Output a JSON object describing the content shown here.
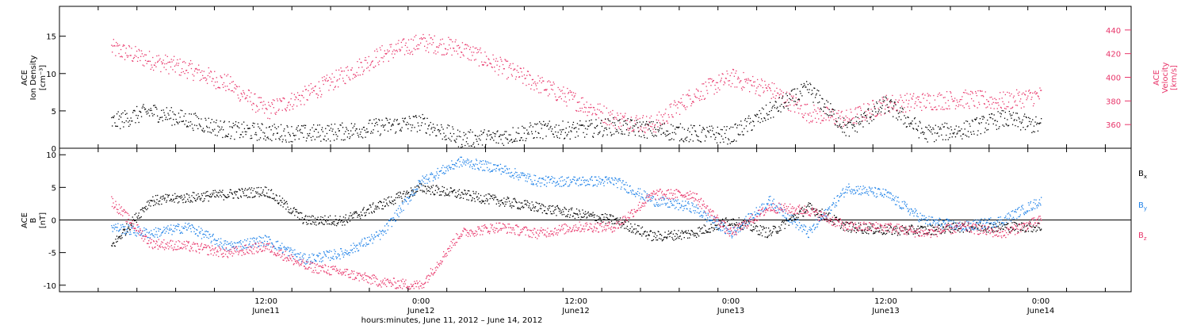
{
  "chart_data": [
    {
      "type": "scatter",
      "panel": "ion-density-velocity",
      "ylabel_left": [
        "ACE",
        "Ion Density",
        "[cm⁻³]"
      ],
      "ylabel_right": [
        "ACE",
        "Velocity",
        "[km/s]"
      ],
      "ylim_left": [
        0,
        19
      ],
      "ylim_right": [
        340,
        460
      ],
      "yticks_left": [
        "0",
        "5",
        "10",
        "15"
      ],
      "yticks_right": [
        "360",
        "380",
        "400",
        "420",
        "440"
      ],
      "colors": {
        "density": "#000000",
        "velocity": "#e8356a"
      },
      "series": [
        {
          "axis": "left",
          "hours": [
            0,
            3,
            6,
            9,
            12,
            15,
            18,
            21,
            24,
            27,
            30,
            33,
            36,
            39,
            42,
            45,
            48,
            51,
            54,
            57,
            60,
            63,
            66,
            69,
            72
          ],
          "values": [
            3.5,
            5,
            3.8,
            2.5,
            2.2,
            2,
            2.3,
            3,
            3.5,
            1.3,
            1.5,
            2.5,
            2.5,
            3,
            2.5,
            2,
            1.8,
            5,
            8,
            2.5,
            6,
            2,
            2.5,
            4,
            3
          ]
        },
        {
          "axis": "right",
          "hours": [
            0,
            3,
            6,
            9,
            12,
            15,
            18,
            21,
            24,
            27,
            30,
            33,
            36,
            39,
            42,
            45,
            48,
            51,
            54,
            57,
            60,
            63,
            66,
            69,
            72
          ],
          "values": [
            425,
            415,
            407,
            395,
            372,
            385,
            402,
            420,
            430,
            425,
            410,
            395,
            380,
            365,
            360,
            385,
            400,
            390,
            370,
            365,
            378,
            380,
            382,
            380,
            385
          ]
        }
      ]
    },
    {
      "type": "scatter",
      "panel": "magnetic-field",
      "ylabel_left": [
        "ACE",
        "B",
        "[nT]"
      ],
      "ylim": [
        -11,
        11
      ],
      "yticks": [
        "-10",
        "-5",
        "0",
        "5",
        "10"
      ],
      "zero_line": true,
      "legend_position": "right",
      "series": [
        {
          "name_main": "B",
          "name_sub": "x",
          "color": "#000000",
          "hours": [
            0,
            3,
            6,
            9,
            12,
            15,
            18,
            21,
            24,
            27,
            30,
            33,
            36,
            39,
            42,
            45,
            48,
            51,
            54,
            57,
            60,
            63,
            66,
            69,
            72
          ],
          "values": [
            -4,
            3,
            3.5,
            4,
            4.5,
            0,
            0,
            2.5,
            5,
            4,
            3,
            2,
            1,
            0,
            -2.5,
            -2,
            0,
            -2,
            2,
            -1,
            -1.5,
            -1.5,
            -1,
            -1,
            -1
          ]
        },
        {
          "name_main": "B",
          "name_sub": "y",
          "color": "#1f82e8",
          "hours": [
            0,
            3,
            6,
            9,
            12,
            15,
            18,
            21,
            24,
            27,
            30,
            33,
            36,
            39,
            42,
            45,
            48,
            51,
            54,
            57,
            60,
            63,
            66,
            69,
            72
          ],
          "values": [
            -1,
            -2,
            -1,
            -4,
            -3,
            -6,
            -5,
            -2,
            6,
            9,
            8,
            6,
            6,
            6,
            3,
            2,
            -2,
            3,
            -2,
            5,
            4,
            0,
            -1,
            0,
            3
          ]
        },
        {
          "name_main": "B",
          "name_sub": "z",
          "color": "#e8356a",
          "hours": [
            0,
            3,
            6,
            9,
            12,
            15,
            18,
            21,
            24,
            27,
            30,
            33,
            36,
            39,
            42,
            45,
            48,
            51,
            54,
            57,
            60,
            63,
            66,
            69,
            72
          ],
          "values": [
            3,
            -3.5,
            -4,
            -5,
            -4,
            -7,
            -8,
            -9.5,
            -10,
            -2,
            -1,
            -2,
            -1,
            -1,
            4,
            4,
            -2,
            2,
            1.5,
            -1,
            -1,
            -2,
            -1,
            -2,
            0
          ]
        }
      ]
    }
  ],
  "x_axis": {
    "range_hours": [
      -4,
      79
    ],
    "ticks": [
      {
        "hours": 12,
        "time": "12:00",
        "date": "June11"
      },
      {
        "hours": 24,
        "time": "0:00",
        "date": "June12"
      },
      {
        "hours": 36,
        "time": "12:00",
        "date": "June12"
      },
      {
        "hours": 48,
        "time": "0:00",
        "date": "June13"
      },
      {
        "hours": 60,
        "time": "12:00",
        "date": "June13"
      },
      {
        "hours": 72,
        "time": "0:00",
        "date": "June14"
      }
    ],
    "label": "hours:minutes, June 11, 2012 – June 14, 2012"
  }
}
